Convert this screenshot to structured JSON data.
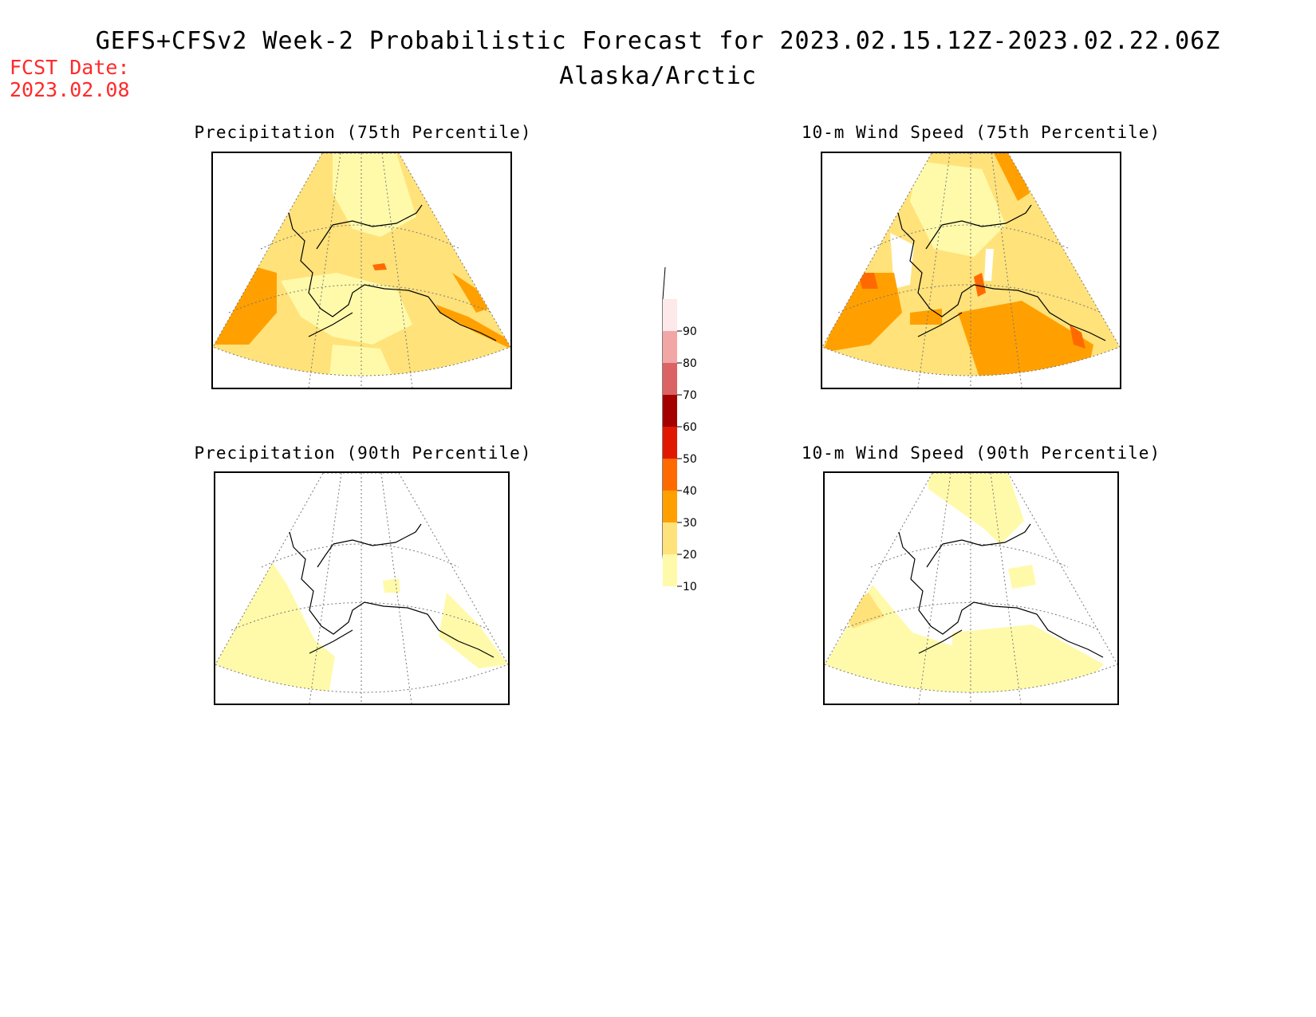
{
  "header": {
    "title": "GEFS+CFSv2 Week-2 Probabilistic Forecast for 2023.02.15.12Z-2023.02.22.06Z",
    "region": "Alaska/Arctic",
    "fcst_label": "FCST Date:",
    "fcst_date": "2023.02.08"
  },
  "colors": {
    "fcst_text": "#ff2a2a",
    "bin_10_20": "#fffaaa",
    "bin_20_30": "#ffe27a",
    "bin_30_40": "#ffa000",
    "bin_40_50": "#ff6a00",
    "bin_50_60": "#e11800",
    "bin_60_70": "#a50000",
    "bin_70_80": "#db6363",
    "bin_80_90": "#f2a6a6",
    "bin_90_100": "#fde8ea"
  },
  "colorbar": {
    "labels": [
      "10",
      "20",
      "30",
      "40",
      "50",
      "60",
      "70",
      "80",
      "90"
    ]
  },
  "panels": [
    {
      "id": "precip-75",
      "title": "Precipitation (75th Percentile)"
    },
    {
      "id": "wind-75",
      "title": "10-m Wind Speed (75th Percentile)"
    },
    {
      "id": "precip-90",
      "title": "Precipitation (90th Percentile)"
    },
    {
      "id": "wind-90",
      "title": "10-m Wind Speed (90th Percentile)"
    }
  ]
}
